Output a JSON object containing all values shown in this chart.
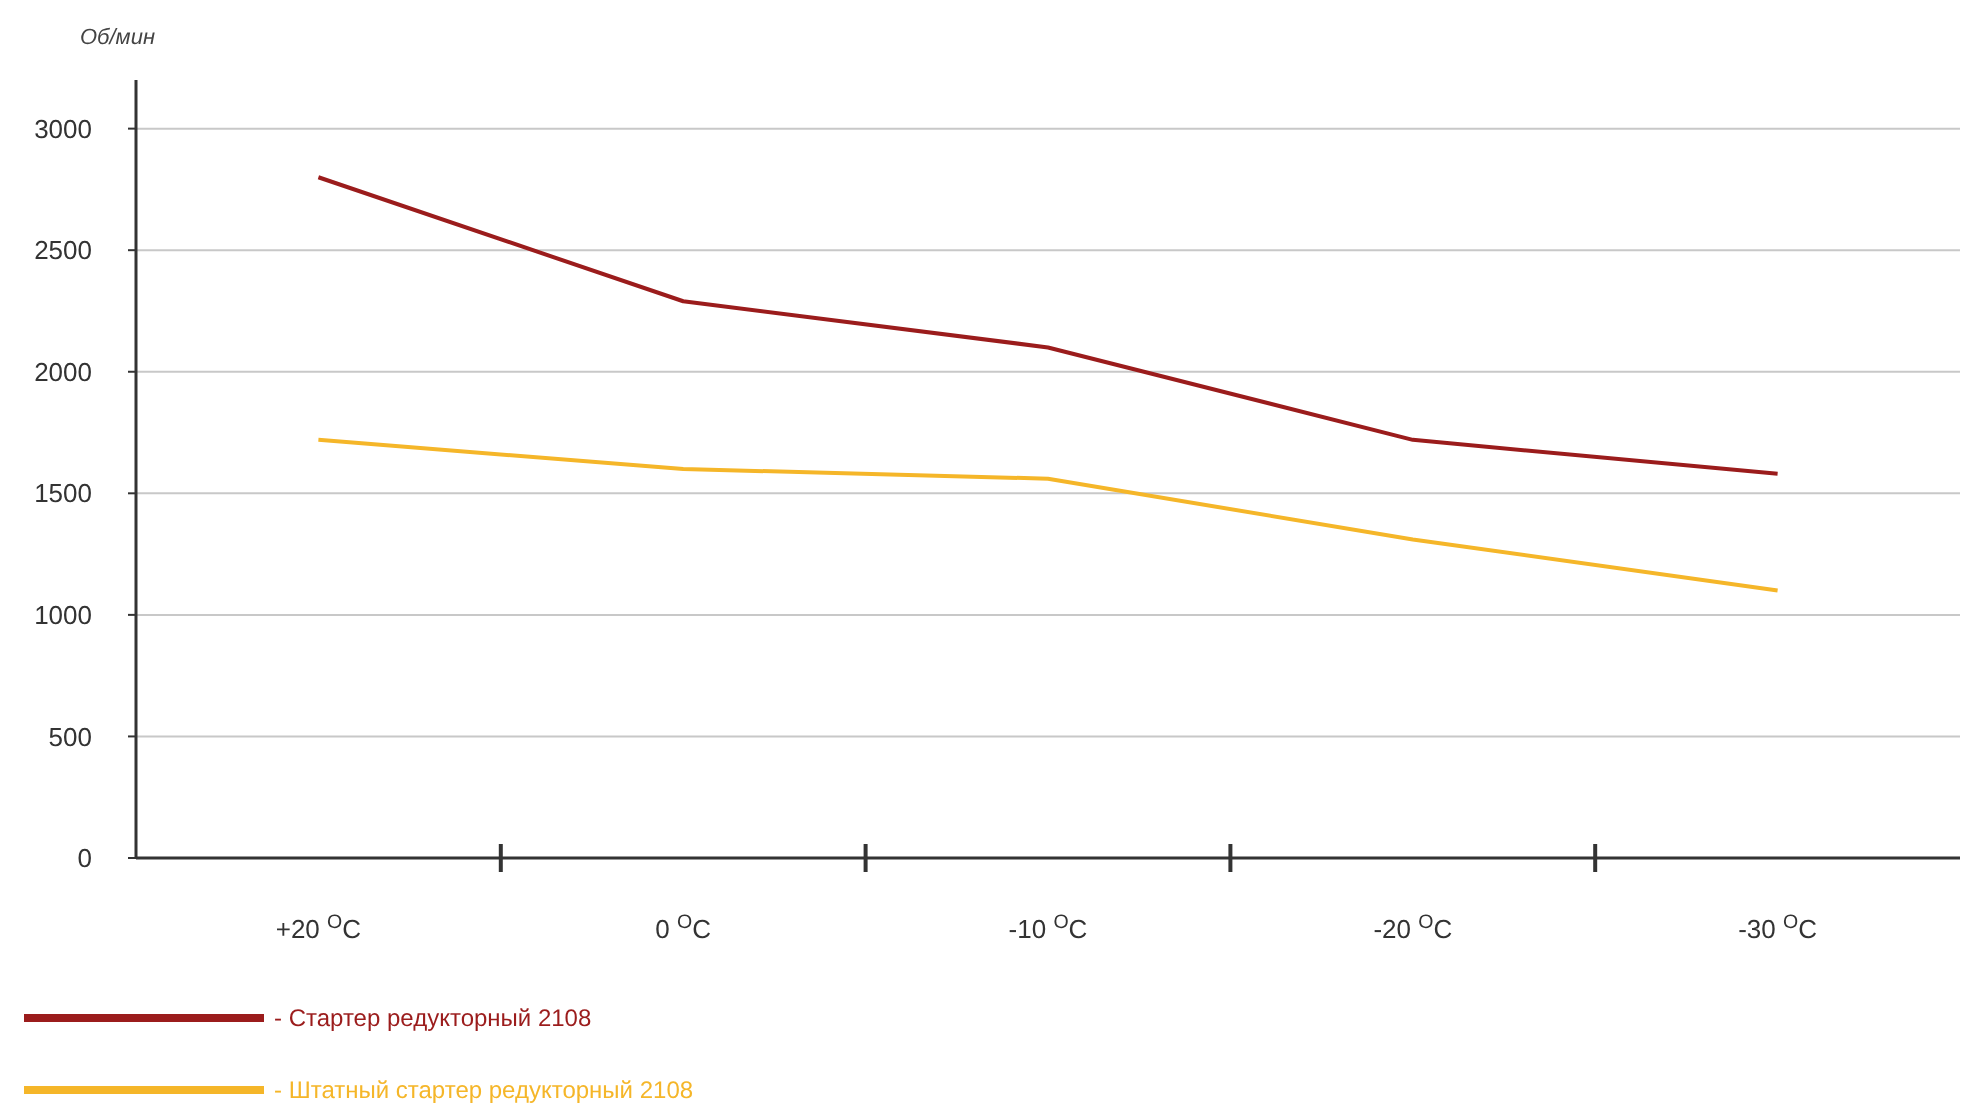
{
  "chart_data": {
    "type": "line",
    "ylabel": "Об/мин",
    "categories": [
      "+20 $^{O}$C",
      "0 $^{O}$C",
      "-10 $^{O}$C",
      "-20 $^{O}$C",
      "-30 $^{O}$C"
    ],
    "series": [
      {
        "name": "- Стартер редукторный 2108",
        "color": "#9b1c1c",
        "values": [
          2800,
          2290,
          2100,
          1720,
          1580
        ]
      },
      {
        "name": "- Штатный стартер редукторный 2108",
        "color": "#f5b629",
        "values": [
          1720,
          1600,
          1560,
          1310,
          1100
        ]
      }
    ],
    "ylim": [
      0,
      3200
    ],
    "yticks": [
      0,
      500,
      1000,
      1500,
      2000,
      2500,
      3000
    ],
    "grid": "y",
    "legend": "bottom",
    "marker": "none",
    "line_style": "solid"
  }
}
